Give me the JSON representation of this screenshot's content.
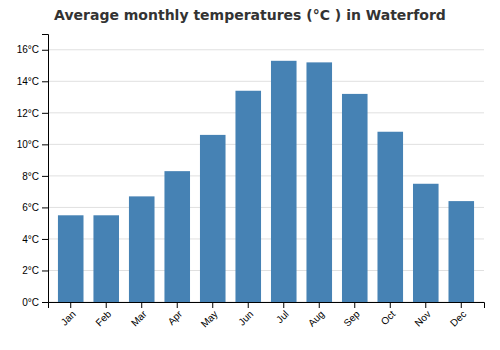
{
  "chart_data": {
    "type": "bar",
    "title": "Average monthly temperatures (°C ) in Waterford",
    "categories": [
      "Jan",
      "Feb",
      "Mar",
      "Apr",
      "May",
      "Jun",
      "Jul",
      "Aug",
      "Sep",
      "Oct",
      "Nov",
      "Dec"
    ],
    "values": [
      5.5,
      5.5,
      6.7,
      8.3,
      10.6,
      13.4,
      15.3,
      15.2,
      13.2,
      10.8,
      7.5,
      6.4
    ],
    "ylim": [
      0,
      17
    ],
    "yticks": [
      {
        "value": 0,
        "label": "0°C"
      },
      {
        "value": 2,
        "label": "2°C"
      },
      {
        "value": 4,
        "label": "4°C"
      },
      {
        "value": 6,
        "label": "6°C"
      },
      {
        "value": 8,
        "label": "8°C"
      },
      {
        "value": 10,
        "label": "10°C"
      },
      {
        "value": 12,
        "label": "12°C"
      },
      {
        "value": 14,
        "label": "14°C"
      },
      {
        "value": 16,
        "label": "16°C"
      }
    ],
    "grid": true
  }
}
